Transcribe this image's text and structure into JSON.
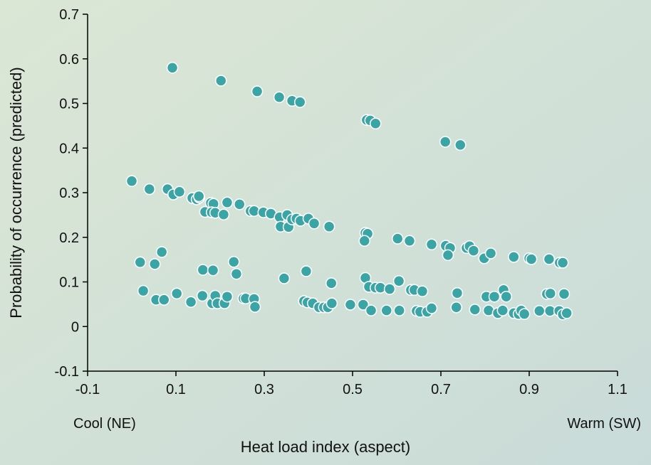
{
  "chart_data": {
    "type": "scatter",
    "xlabel": "Heat load index (aspect)",
    "ylabel": "Probability of occurrence (predicted)",
    "annotations": [
      "Cool (NE)",
      "Warm (SW)"
    ],
    "color": "#3ba5a6",
    "xlim": [
      -0.1,
      1.1
    ],
    "xticks": [
      -0.1,
      0.1,
      0.3,
      0.5,
      0.7,
      0.9,
      1.1
    ],
    "ylim": [
      -0.1,
      0.7
    ],
    "yticks": [
      -0.1,
      0,
      0.1,
      0.2,
      0.3,
      0.4,
      0.5,
      0.6,
      0.7
    ],
    "x": [
      0.092,
      0.202,
      0.284,
      0.334,
      0.363,
      0.381,
      0.532,
      0.54,
      0.552,
      0.71,
      0.744,
      0,
      0.04,
      0.081,
      0.094,
      0.108,
      0.137,
      0.147,
      0.153,
      0.152,
      0.166,
      0.179,
      0.185,
      0.181,
      0.189,
      0.208,
      0.216,
      0.244,
      0.269,
      0.277,
      0.298,
      0.315,
      0.335,
      0.337,
      0.352,
      0.355,
      0.363,
      0.373,
      0.382,
      0.4,
      0.413,
      0.447,
      0.529,
      0.534,
      0.527,
      0.602,
      0.629,
      0.679,
      0.711,
      0.721,
      0.716,
      0.758,
      0.765,
      0.774,
      0.798,
      0.813,
      0.865,
      0.9,
      0.905,
      0.945,
      0.969,
      0.976,
      0.019,
      0.052,
      0.068,
      0.161,
      0.184,
      0.231,
      0.237,
      0.345,
      0.395,
      0.452,
      0.529,
      0.537,
      0.552,
      0.563,
      0.584,
      0.605,
      0.632,
      0.64,
      0.658,
      0.737,
      0.803,
      0.821,
      0.842,
      0.848,
      0.94,
      0.948,
      0.979,
      0.026,
      0.055,
      0.073,
      0.102,
      0.134,
      0.16,
      0.182,
      0.189,
      0.194,
      0.21,
      0.216,
      0.253,
      0.258,
      0.277,
      0.279,
      0.39,
      0.398,
      0.41,
      0.424,
      0.435,
      0.444,
      0.453,
      0.495,
      0.524,
      0.542,
      0.577,
      0.606,
      0.645,
      0.653,
      0.669,
      0.679,
      0.735,
      0.777,
      0.808,
      0.829,
      0.84,
      0.865,
      0.876,
      0.882,
      0.889,
      0.923,
      0.947,
      0.968,
      0.976,
      0.985
    ],
    "values": [
      0.58,
      0.551,
      0.527,
      0.514,
      0.506,
      0.503,
      0.463,
      0.462,
      0.455,
      0.414,
      0.407,
      0.326,
      0.308,
      0.308,
      0.296,
      0.302,
      0.288,
      0.285,
      0.289,
      0.292,
      0.257,
      0.277,
      0.275,
      0.256,
      0.255,
      0.251,
      0.278,
      0.274,
      0.259,
      0.259,
      0.256,
      0.253,
      0.245,
      0.224,
      0.25,
      0.223,
      0.24,
      0.242,
      0.237,
      0.242,
      0.231,
      0.224,
      0.21,
      0.208,
      0.192,
      0.197,
      0.192,
      0.184,
      0.181,
      0.176,
      0.16,
      0.176,
      0.18,
      0.17,
      0.153,
      0.164,
      0.156,
      0.153,
      0.151,
      0.151,
      0.143,
      0.143,
      0.144,
      0.14,
      0.167,
      0.127,
      0.126,
      0.145,
      0.118,
      0.108,
      0.124,
      0.097,
      0.109,
      0.089,
      0.087,
      0.087,
      0.084,
      0.102,
      0.082,
      0.082,
      0.079,
      0.075,
      0.067,
      0.067,
      0.082,
      0.067,
      0.073,
      0.074,
      0.073,
      0.08,
      0.06,
      0.06,
      0.074,
      0.055,
      0.069,
      0.052,
      0.069,
      0.052,
      0.052,
      0.067,
      0.063,
      0.063,
      0.062,
      0.044,
      0.057,
      0.054,
      0.052,
      0.043,
      0.043,
      0.043,
      0.052,
      0.049,
      0.049,
      0.036,
      0.036,
      0.036,
      0.035,
      0.033,
      0.033,
      0.041,
      0.043,
      0.038,
      0.036,
      0.03,
      0.036,
      0.03,
      0.028,
      0.036,
      0.028,
      0.035,
      0.035,
      0.035,
      0.027,
      0.03
    ]
  }
}
